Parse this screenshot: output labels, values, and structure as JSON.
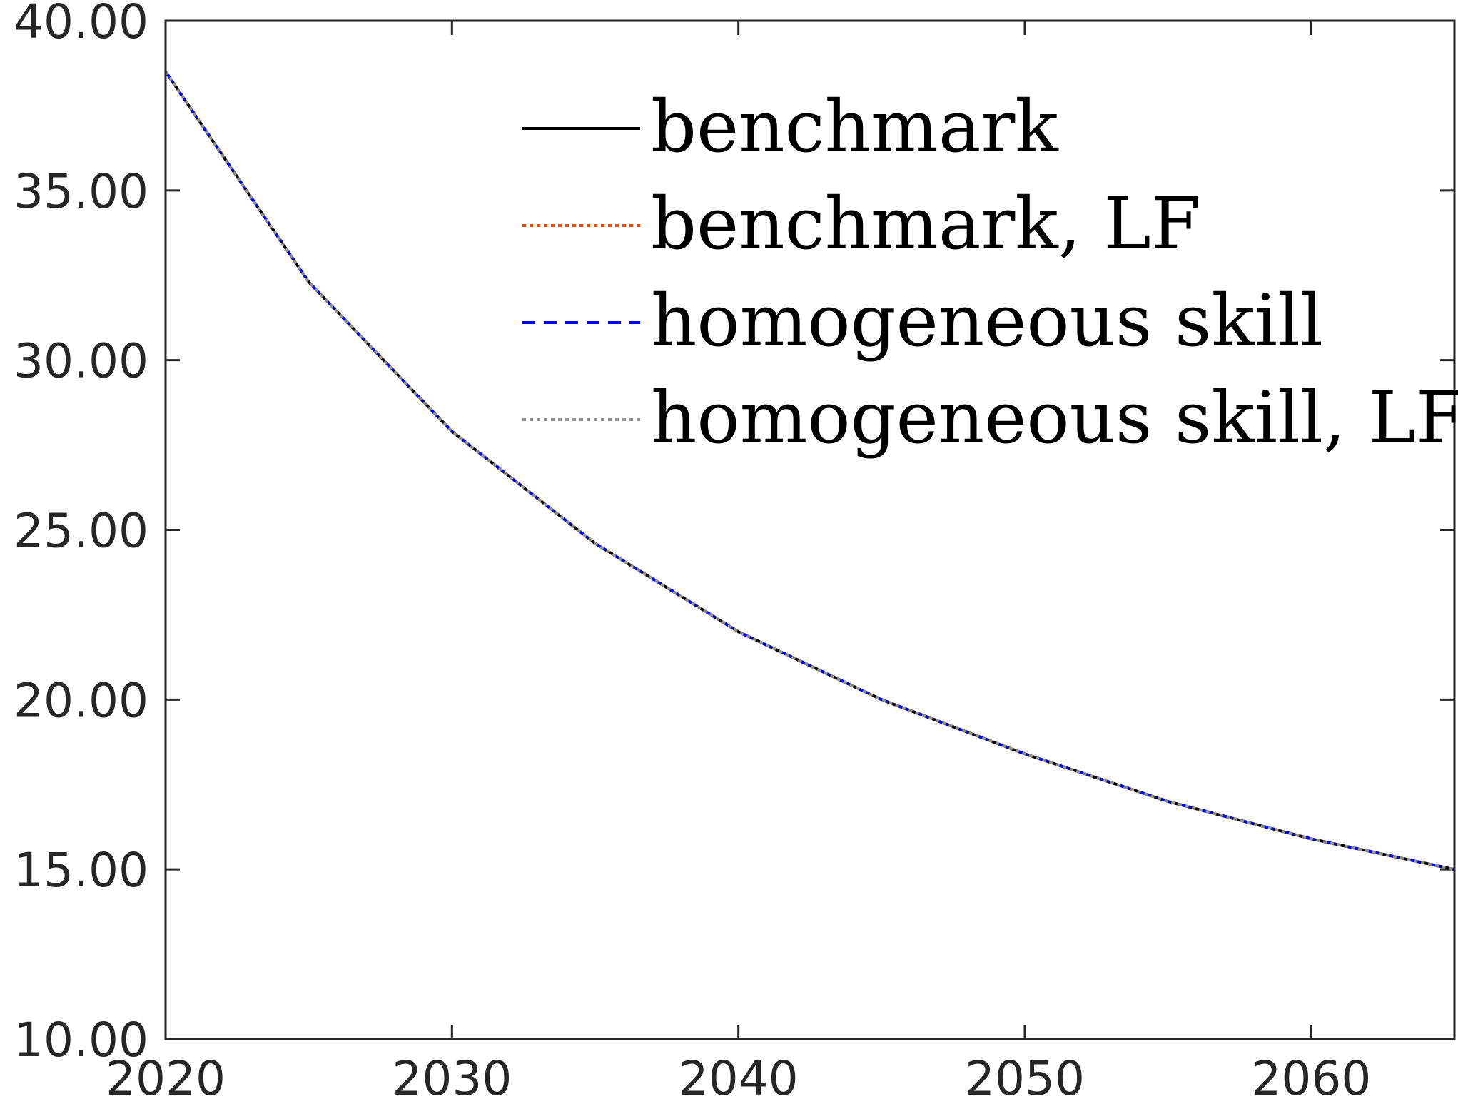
{
  "chart_data": {
    "type": "line",
    "title": "",
    "xlabel": "",
    "ylabel": "",
    "xlim": [
      2020,
      2065
    ],
    "ylim": [
      10,
      40
    ],
    "x_ticks": [
      "2020",
      "2030",
      "2040",
      "2050",
      "2060"
    ],
    "y_ticks": [
      "10.00",
      "15.00",
      "20.00",
      "25.00",
      "30.00",
      "35.00",
      "40.00"
    ],
    "grid": false,
    "legend_position": "top-right",
    "x": [
      2020,
      2025,
      2030,
      2035,
      2040,
      2045,
      2050,
      2055,
      2060,
      2065
    ],
    "series": [
      {
        "name": "benchmark",
        "color": "#000000",
        "style": "solid",
        "values": [
          38.5,
          32.3,
          27.9,
          24.6,
          22.0,
          20.0,
          18.4,
          17.0,
          15.9,
          15.0
        ]
      },
      {
        "name": "benchmark, LF",
        "color": "#d95319",
        "style": "dotted",
        "values": [
          38.5,
          32.3,
          27.9,
          24.6,
          22.0,
          20.0,
          18.4,
          17.0,
          15.9,
          15.0
        ]
      },
      {
        "name": "homogeneous skill",
        "color": "#0000ff",
        "style": "dashed",
        "values": [
          38.5,
          32.3,
          27.9,
          24.6,
          22.0,
          20.0,
          18.4,
          17.0,
          15.9,
          15.0
        ]
      },
      {
        "name": "homogeneous skill, LF",
        "color": "#909090",
        "style": "dotted",
        "values": [
          38.5,
          32.3,
          27.9,
          24.6,
          22.0,
          20.0,
          18.4,
          17.0,
          15.9,
          15.0
        ]
      }
    ]
  }
}
